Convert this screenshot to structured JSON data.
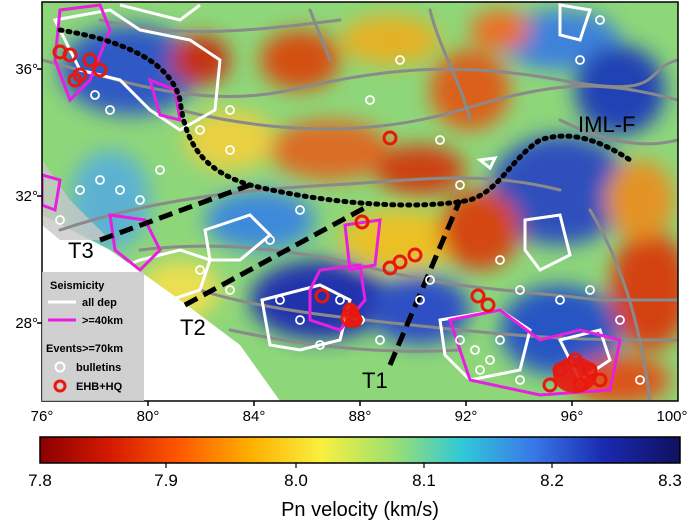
{
  "map": {
    "lon_range": [
      76,
      100
    ],
    "lat_range": [
      25.2,
      37.8
    ],
    "x_ticks": [
      "76°",
      "80°",
      "84°",
      "88°",
      "92°",
      "96°",
      "100°"
    ],
    "y_ticks": [
      "36°",
      "32°",
      "28°"
    ],
    "labels": {
      "iml": "IML-F",
      "t1": "T1",
      "t2": "T2",
      "t3": "T3"
    },
    "legend": {
      "seismicity_title": "Seismicity",
      "all_dep": "all dep",
      "ge40": ">=40km",
      "events_title": "Events>=70km",
      "bulletins": "bulletins",
      "ehb": "EHB+HQ"
    },
    "colors": {
      "contour_all": "#ffffff",
      "contour_40": "#e81ee0",
      "faults": "#8a8a8a",
      "bulletin_circle": "#ffffff",
      "ehb_circle": "#e8180c"
    }
  },
  "colorbar": {
    "title": "Pn velocity (km/s)",
    "ticks": [
      "7.8",
      "7.9",
      "8.0",
      "8.1",
      "8.2",
      "8.3"
    ],
    "colors": [
      "#8b0000",
      "#d41a00",
      "#ff5a00",
      "#ffb000",
      "#f8f040",
      "#9ee070",
      "#30c8d8",
      "#3a78e8",
      "#1a2ab0",
      "#101060"
    ]
  }
}
